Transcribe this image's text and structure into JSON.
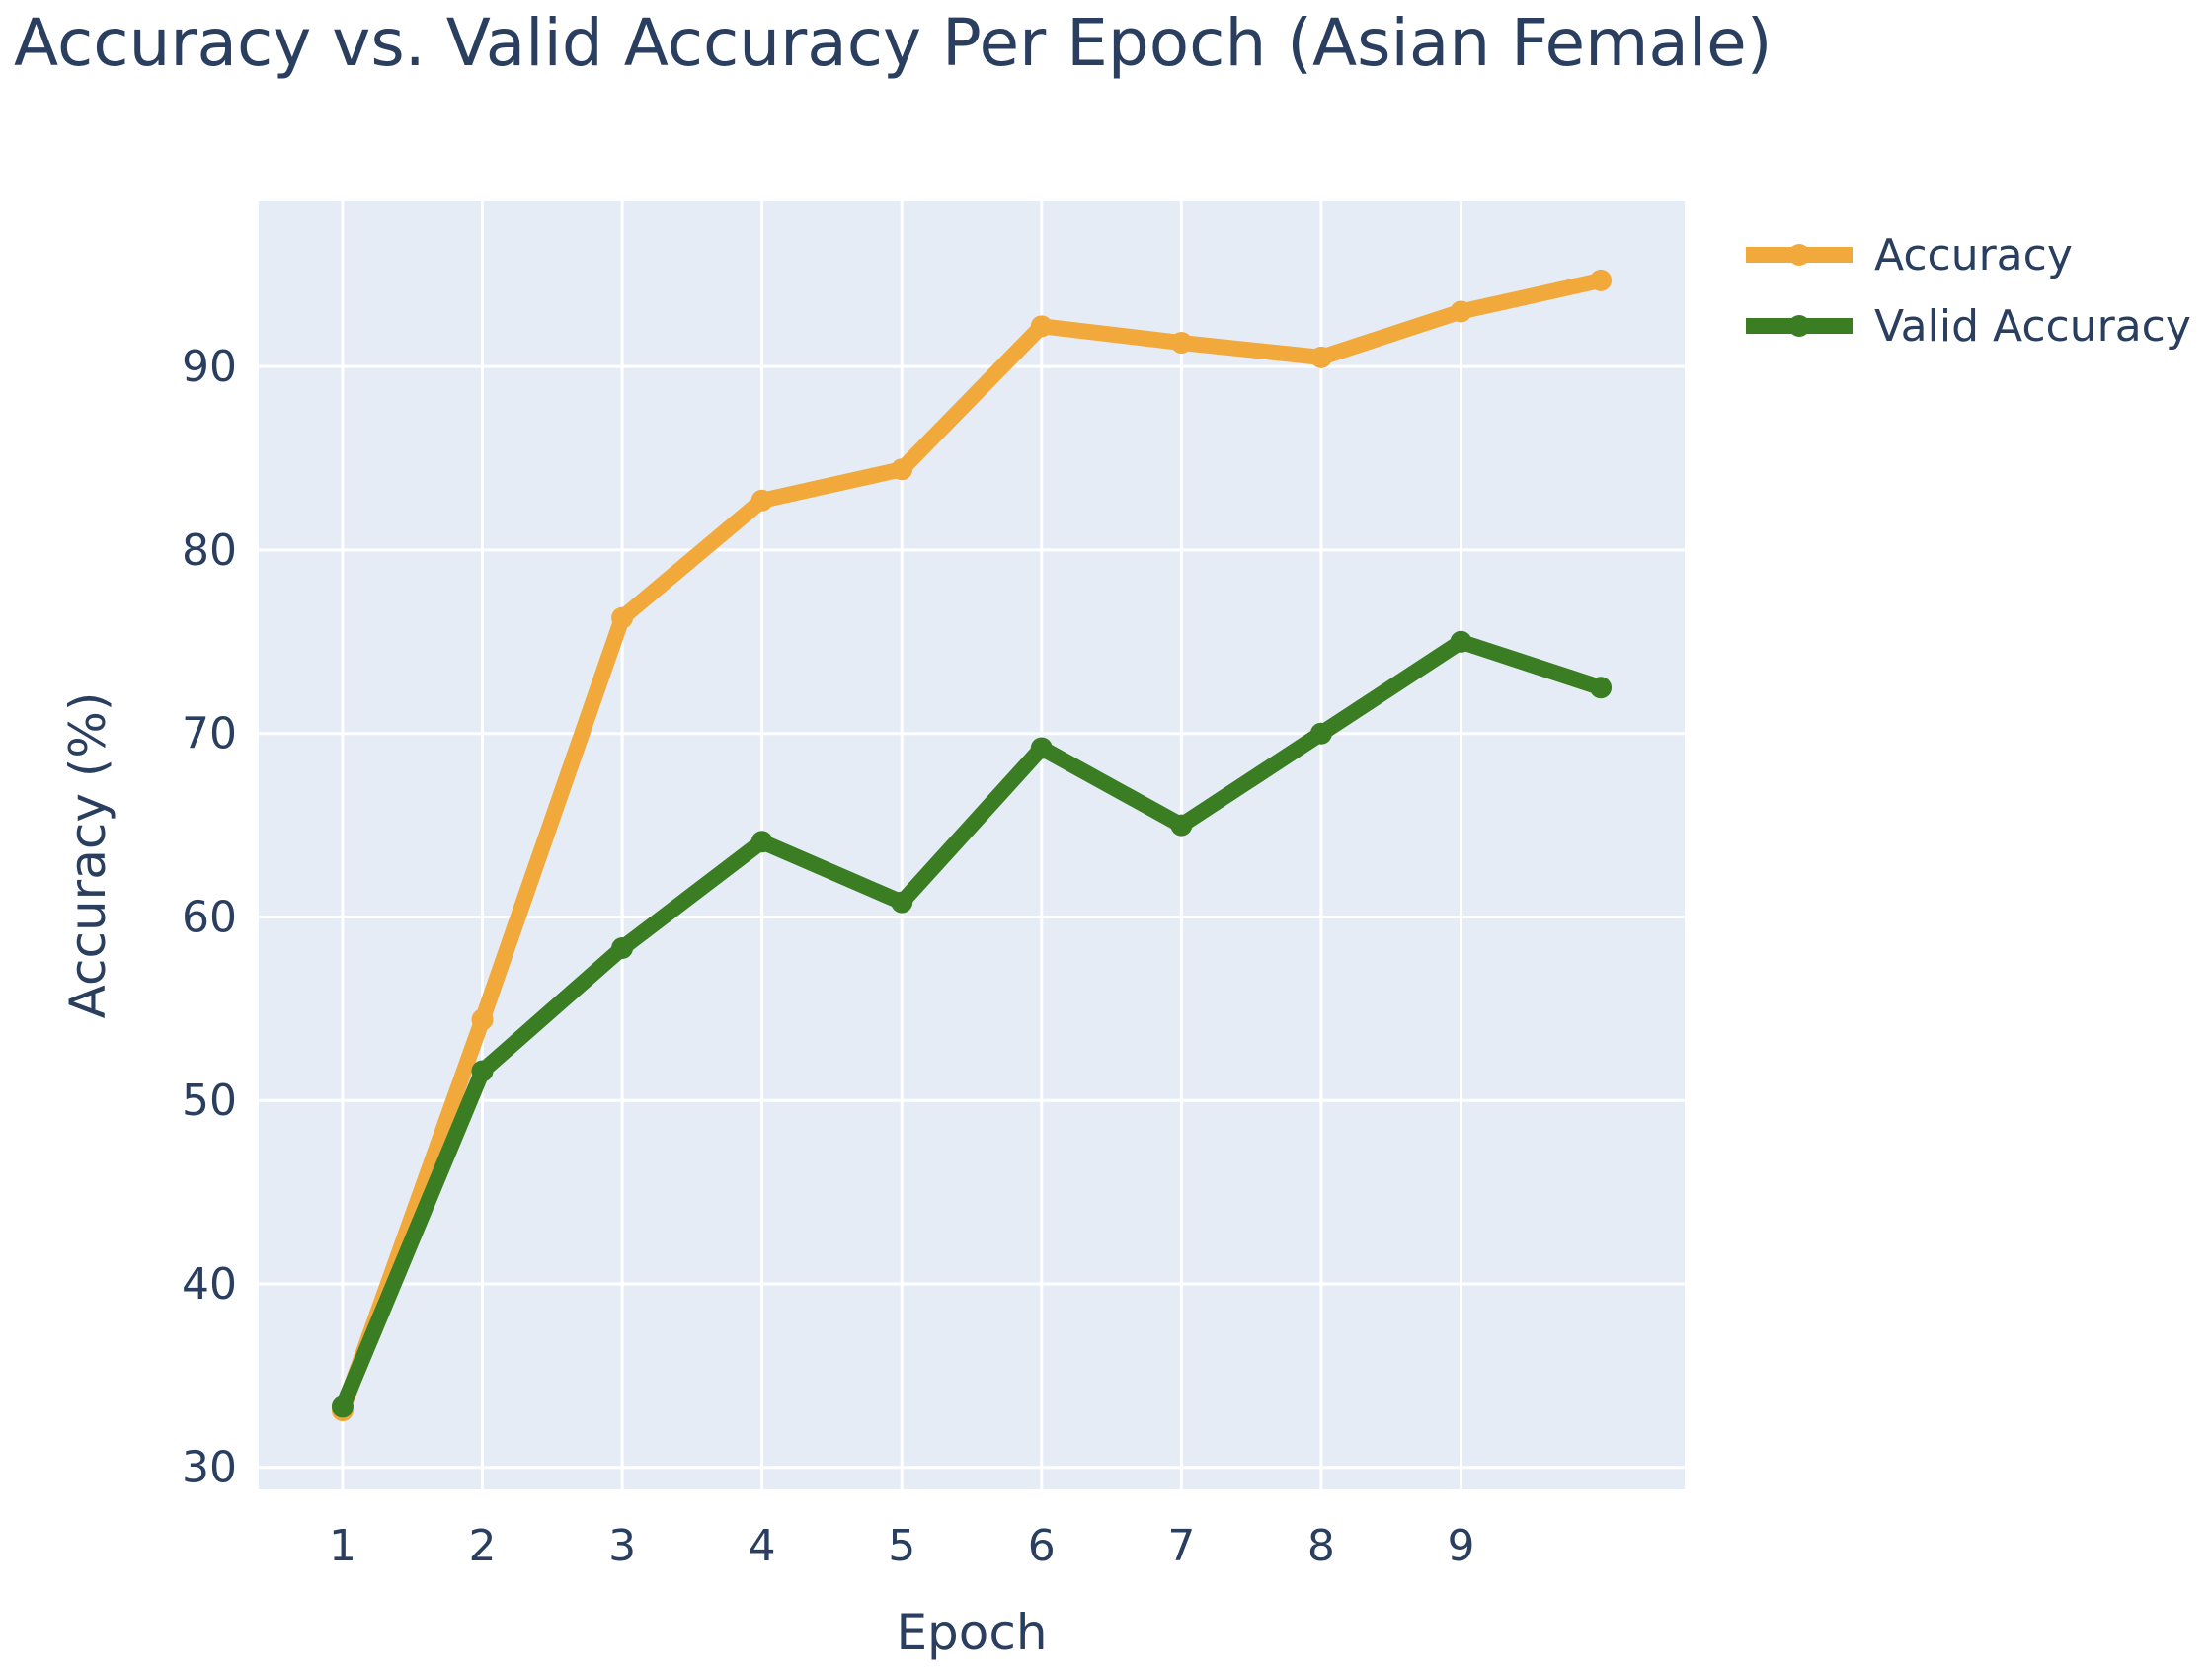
{
  "chart_data": {
    "type": "line",
    "title": "Accuracy vs. Valid Accuracy Per Epoch (Asian Female)",
    "xlabel": "Epoch",
    "ylabel": "Accuracy (%)",
    "x": [
      1,
      2,
      3,
      4,
      5,
      6,
      7,
      8,
      9,
      10
    ],
    "x_ticks": [
      1,
      2,
      3,
      4,
      5,
      6,
      7,
      8,
      9
    ],
    "y_ticks": [
      30,
      40,
      50,
      60,
      70,
      80,
      90
    ],
    "xlim": [
      0.4,
      10.6
    ],
    "ylim": [
      28.8,
      99
    ],
    "grid": true,
    "legend_position": "top-right",
    "plot_background": "#e5ecf6",
    "series": [
      {
        "name": "Accuracy",
        "color": "#f2a93b",
        "values": [
          33.1,
          54.4,
          76.3,
          82.7,
          84.4,
          92.2,
          91.3,
          90.5,
          93.0,
          94.7
        ]
      },
      {
        "name": "Valid Accuracy",
        "color": "#3a7d22",
        "values": [
          33.3,
          51.6,
          58.3,
          64.1,
          60.8,
          69.2,
          65.0,
          70.0,
          75.0,
          72.5
        ]
      }
    ]
  }
}
